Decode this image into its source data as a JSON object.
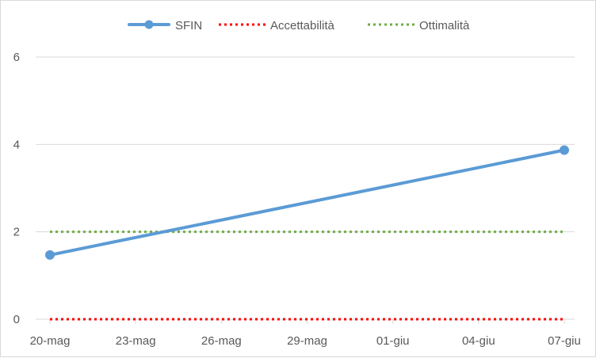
{
  "chart_data": {
    "type": "line",
    "x_ticks": [
      "20-mag",
      "23-mag",
      "26-mag",
      "29-mag",
      "01-giu",
      "04-giu",
      "07-giu"
    ],
    "ylim": [
      0,
      6
    ],
    "y_ticks": [
      0,
      2,
      4,
      6
    ],
    "grid": true,
    "legend_position": "top",
    "series": [
      {
        "name": "SFIN",
        "style": "solid-with-markers",
        "color": "#5b9bd5",
        "points": [
          {
            "x": "20-mag",
            "y": 1.47
          },
          {
            "x": "07-giu",
            "y": 3.87
          }
        ]
      },
      {
        "name": "Accettabilità",
        "style": "dotted",
        "color": "#ff0000",
        "points": [
          {
            "x": "20-mag",
            "y": 0
          },
          {
            "x": "07-giu",
            "y": 0
          }
        ]
      },
      {
        "name": "Ottimalità",
        "style": "dotted",
        "color": "#70ad47",
        "points": [
          {
            "x": "20-mag",
            "y": 2
          },
          {
            "x": "07-giu",
            "y": 2
          }
        ]
      }
    ]
  }
}
